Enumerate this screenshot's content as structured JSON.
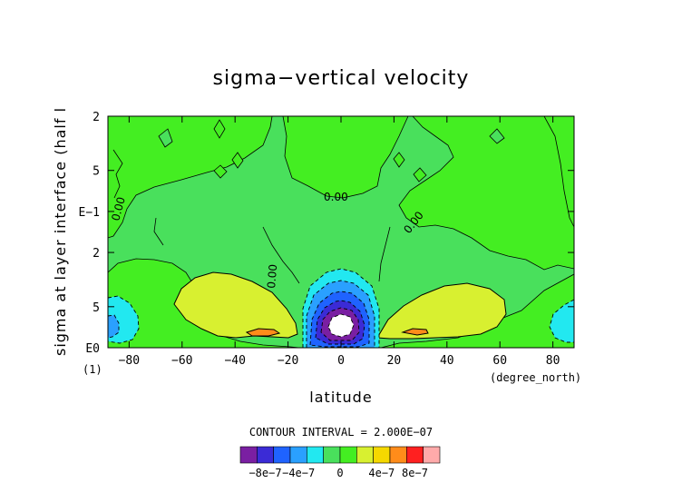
{
  "chart_data": {
    "type": "heatmap",
    "title": "sigma−vertical velocity",
    "xlabel": "latitude",
    "xunit": "(degree_north)",
    "ylabel": "sigma at layer interface (half l",
    "yunit": "(1)",
    "xlim": [
      -88,
      88
    ],
    "x_ticks": [
      "−80",
      "−60",
      "−40",
      "−20",
      "0",
      "20",
      "40",
      "60",
      "80"
    ],
    "x_tick_values": [
      -80,
      -60,
      -40,
      -20,
      0,
      20,
      40,
      60,
      80
    ],
    "y_ticks": [
      "2",
      "5",
      "E−1",
      "2",
      "5",
      "E0"
    ],
    "y_tick_values": [
      0.02,
      0.05,
      0.1,
      0.2,
      0.5,
      1.0
    ],
    "ylim": [
      0.02,
      1.0
    ],
    "y_scale": "log",
    "y_inverted": true,
    "grid": false,
    "contour_labels": [
      "0.00",
      "0.00",
      "0.00",
      "0.00"
    ],
    "contour_interval_text": "CONTOUR INTERVAL = 2.000E−07",
    "colorbar": {
      "levels": [
        -1e-06,
        -8e-07,
        -6e-07,
        -4e-07,
        -2e-07,
        0,
        2e-07,
        4e-07,
        6e-07,
        8e-07,
        1e-06
      ],
      "colors": [
        "#7a1fa2",
        "#3b2bd6",
        "#1f63ff",
        "#2aa0ff",
        "#22e8f0",
        "#49e05c",
        "#44ee22",
        "#d8f030",
        "#f5d800",
        "#ff8c1a",
        "#ff2020",
        "#ffaaaa"
      ],
      "labels": [
        "−8e−7",
        "−4e−7",
        "0",
        "4e−7",
        "8e−7"
      ]
    },
    "features": [
      {
        "name": "equatorial minimum",
        "lat": 0,
        "sigma": 0.82,
        "value": "< -1e-6"
      },
      {
        "name": "SH positive band",
        "lat": -30,
        "sigma": 0.6,
        "value": "2e-7 to 4e-7"
      },
      {
        "name": "SH local max",
        "lat": -30,
        "sigma": 0.85,
        "value": "4e-7 to 6e-7"
      },
      {
        "name": "NH positive band",
        "lat": 35,
        "sigma": 0.6,
        "value": "2e-7 to 4e-7"
      },
      {
        "name": "NH local max",
        "lat": 27,
        "sigma": 0.85,
        "value": "4e-7 to 6e-7"
      },
      {
        "name": "SH polar minimum",
        "lat": -86,
        "sigma": 0.8,
        "value": "-4e-7 to -2e-7"
      },
      {
        "name": "NH polar minimum",
        "lat": 86,
        "sigma": 0.75,
        "value": "-4e-7 to -2e-7"
      }
    ]
  }
}
